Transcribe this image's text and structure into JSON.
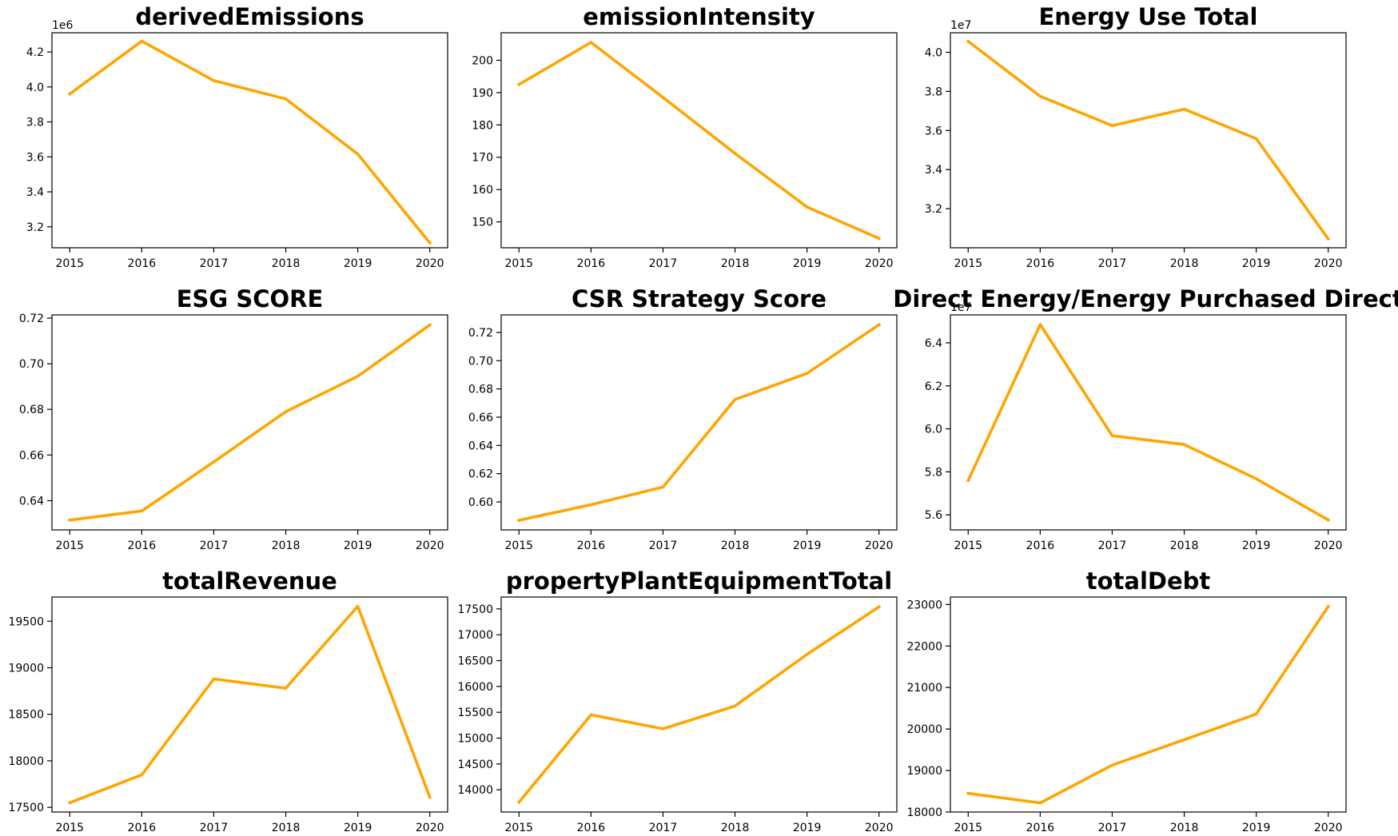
{
  "figure": {
    "line_color": "#FFA500",
    "background": "#FFFFFF"
  },
  "chart_data": [
    {
      "type": "line",
      "title": "derivedEmissions",
      "x": [
        "2015",
        "2016",
        "2017",
        "2018",
        "2019",
        "2020"
      ],
      "y": [
        3960000,
        4262000,
        4036000,
        3932000,
        3616000,
        3108000
      ],
      "yticks": [
        3.2,
        3.4,
        3.6,
        3.8,
        4.0,
        4.2
      ],
      "ytick_labels": [
        "3.2",
        "3.4",
        "3.6",
        "3.8",
        "4.0",
        "4.2"
      ],
      "ylim": [
        3.08,
        4.31
      ],
      "scale": 1000000,
      "offset_label": "1e6",
      "grid": false
    },
    {
      "type": "line",
      "title": "emissionIntensity",
      "x": [
        "2015",
        "2016",
        "2017",
        "2018",
        "2019",
        "2020"
      ],
      "y": [
        192.5,
        205.5,
        188.5,
        171.2,
        154.6,
        144.9
      ],
      "yticks": [
        150,
        160,
        170,
        180,
        190,
        200
      ],
      "ytick_labels": [
        "150",
        "160",
        "170",
        "180",
        "190",
        "200"
      ],
      "ylim": [
        142.0,
        208.5
      ],
      "scale": 1,
      "offset_label": "",
      "grid": false
    },
    {
      "type": "line",
      "title": "Energy Use Total",
      "x": [
        "2015",
        "2016",
        "2017",
        "2018",
        "2019",
        "2020"
      ],
      "y": [
        40560000,
        37750000,
        36250000,
        37090000,
        35580000,
        30460000
      ],
      "yticks": [
        3.2,
        3.4,
        3.6,
        3.8,
        4.0
      ],
      "ytick_labels": [
        "3.2",
        "3.4",
        "3.6",
        "3.8",
        "4.0"
      ],
      "ylim": [
        3.0,
        4.1
      ],
      "scale": 10000000,
      "offset_label": "1e7",
      "grid": false
    },
    {
      "type": "line",
      "title": "ESG SCORE",
      "x": [
        "2015",
        "2016",
        "2017",
        "2018",
        "2019",
        "2020"
      ],
      "y": [
        0.6315,
        0.6355,
        0.657,
        0.679,
        0.6945,
        0.717
      ],
      "yticks": [
        0.64,
        0.66,
        0.68,
        0.7,
        0.72
      ],
      "ytick_labels": [
        "0.64",
        "0.66",
        "0.68",
        "0.70",
        "0.72"
      ],
      "ylim": [
        0.6272,
        0.7214
      ],
      "scale": 1,
      "offset_label": "",
      "grid": false
    },
    {
      "type": "line",
      "title": "CSR Strategy Score",
      "x": [
        "2015",
        "2016",
        "2017",
        "2018",
        "2019",
        "2020"
      ],
      "y": [
        0.587,
        0.598,
        0.6105,
        0.6725,
        0.691,
        0.7255
      ],
      "yticks": [
        0.6,
        0.62,
        0.64,
        0.66,
        0.68,
        0.7,
        0.72
      ],
      "ytick_labels": [
        "0.60",
        "0.62",
        "0.64",
        "0.66",
        "0.68",
        "0.70",
        "0.72"
      ],
      "ylim": [
        0.5802,
        0.7324
      ],
      "scale": 1,
      "offset_label": "",
      "grid": false
    },
    {
      "type": "line",
      "title": "Direct Energy/Energy Purchased Direct",
      "x": [
        "2015",
        "2016",
        "2017",
        "2018",
        "2019",
        "2020"
      ],
      "y": [
        57600000,
        64850000,
        59680000,
        59270000,
        57680000,
        55760000
      ],
      "yticks": [
        5.6,
        5.8,
        6.0,
        6.2,
        6.4
      ],
      "ytick_labels": [
        "5.6",
        "5.8",
        "6.0",
        "6.2",
        "6.4"
      ],
      "ylim": [
        5.53,
        6.53
      ],
      "scale": 10000000,
      "offset_label": "1e7",
      "grid": false
    },
    {
      "type": "line",
      "title": "totalRevenue",
      "x": [
        "2015",
        "2016",
        "2017",
        "2018",
        "2019",
        "2020"
      ],
      "y": [
        17550,
        17850,
        18880,
        18780,
        19660,
        17610
      ],
      "yticks": [
        17500,
        18000,
        18500,
        19000,
        19500
      ],
      "ytick_labels": [
        "17500",
        "18000",
        "18500",
        "19000",
        "19500"
      ],
      "ylim": [
        17450,
        19760
      ],
      "scale": 1,
      "offset_label": "",
      "grid": false
    },
    {
      "type": "line",
      "title": "propertyPlantEquipmentTotal",
      "x": [
        "2015",
        "2016",
        "2017",
        "2018",
        "2019",
        "2020"
      ],
      "y": [
        13760,
        15450,
        15180,
        15620,
        16620,
        17540
      ],
      "yticks": [
        14000,
        14500,
        15000,
        15500,
        16000,
        16500,
        17000,
        17500
      ],
      "ytick_labels": [
        "14000",
        "14500",
        "15000",
        "15500",
        "16000",
        "16500",
        "17000",
        "17500"
      ],
      "ylim": [
        13570,
        17730
      ],
      "scale": 1,
      "offset_label": "",
      "grid": false
    },
    {
      "type": "line",
      "title": "totalDebt",
      "x": [
        "2015",
        "2016",
        "2017",
        "2018",
        "2019",
        "2020"
      ],
      "y": [
        18450,
        18220,
        19130,
        19740,
        20360,
        22950
      ],
      "yticks": [
        18000,
        19000,
        20000,
        21000,
        22000,
        23000
      ],
      "ytick_labels": [
        "18000",
        "19000",
        "20000",
        "21000",
        "22000",
        "23000"
      ],
      "ylim": [
        18000,
        23180
      ],
      "scale": 1,
      "offset_label": "",
      "grid": false
    }
  ]
}
